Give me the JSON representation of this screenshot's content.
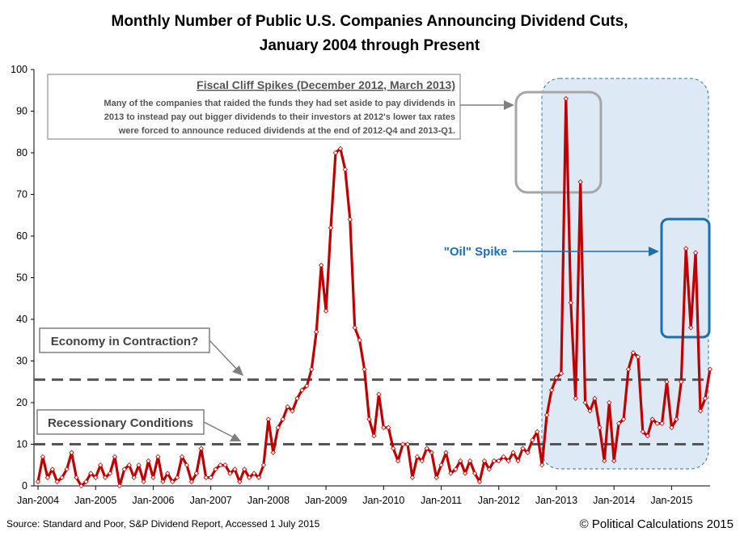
{
  "chart_data": {
    "type": "line",
    "title": "Monthly Number of Public U.S. Companies Announcing Dividend Cuts,",
    "subtitle": "January 2004 through Present",
    "xlabel": "",
    "ylabel": "",
    "ylim": [
      0,
      100
    ],
    "y_ticks": [
      "0",
      "10",
      "20",
      "30",
      "40",
      "50",
      "60",
      "70",
      "80",
      "90",
      "100"
    ],
    "x_tick_labels": [
      "Jan-2004",
      "Jan-2005",
      "Jan-2006",
      "Jan-2007",
      "Jan-2008",
      "Jan-2009",
      "Jan-2010",
      "Jan-2011",
      "Jan-2012",
      "Jan-2013",
      "Jan-2014",
      "Jan-2015"
    ],
    "x_start": "2004-01",
    "grid": false,
    "line_color": "#c00000",
    "marker_color": "#ffffff",
    "series": [
      {
        "values": [
          1,
          7,
          2,
          4,
          1,
          2,
          4,
          8,
          2,
          0,
          1,
          3,
          2,
          5,
          2,
          3,
          7,
          0,
          4,
          5,
          2,
          5,
          1,
          6,
          2,
          7,
          1,
          3,
          1,
          2,
          7,
          5,
          1,
          3,
          9,
          2,
          2,
          4,
          5,
          5,
          3,
          4,
          1,
          4,
          2,
          3,
          2,
          5,
          16,
          8,
          14,
          16,
          19,
          18,
          21,
          23,
          24,
          28,
          37,
          53,
          42,
          62,
          80,
          81,
          76,
          64,
          38,
          35,
          28,
          16,
          12,
          22,
          14,
          14,
          9,
          6,
          10,
          10,
          2,
          7,
          6,
          9,
          8,
          2,
          5,
          8,
          3,
          4,
          6,
          3,
          6,
          3,
          1,
          6,
          4,
          6,
          6,
          7,
          6,
          8,
          6,
          9,
          8,
          11,
          13,
          5,
          17,
          23,
          26,
          27,
          93,
          44,
          21,
          73,
          20,
          18,
          21,
          14,
          6,
          20,
          6,
          15,
          16,
          28,
          32,
          31,
          13,
          12,
          16,
          15,
          15,
          25,
          14,
          16,
          25,
          57,
          38,
          56,
          18,
          21,
          28
        ]
      }
    ],
    "reference_lines": [
      {
        "value": 25.5,
        "color": "#555555"
      },
      {
        "value": 10,
        "color": "#555555"
      }
    ],
    "annotations": {
      "fiscal_cliff_title": "Fiscal Cliff Spikes (December 2012, March 2013)",
      "fiscal_cliff_lines": [
        "Many of the companies that raided the funds they had set aside to pay dividends in",
        "2013 to instead pay out bigger dividends to their investors at 2012's lower tax rates",
        "were forced to announce reduced dividends at the end of 2012-Q4 and 2013-Q1."
      ],
      "contraction": "Economy in Contraction?",
      "recession": "Recessionary Conditions",
      "oil_spike": "\"Oil\" Spike"
    }
  },
  "footer": {
    "source": "Source: Standard and Poor, S&P Dividend Report, Accessed 1 July 2015",
    "copyright": "© Political Calculations 2015"
  },
  "colors": {
    "series_line": "#c00000",
    "highlight_region": "#dde9f5",
    "highlight_border": "#2e75b6",
    "oil_accent": "#1b6fb0",
    "fiscal_box": "#a6a6a6",
    "reference_line": "#555555"
  }
}
